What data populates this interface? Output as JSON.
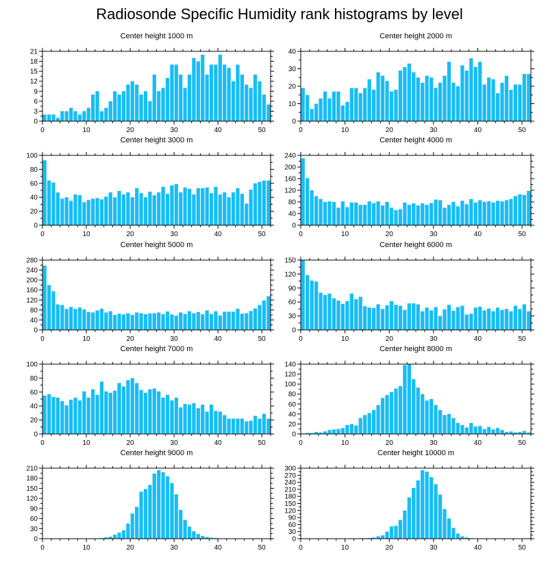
{
  "figure": {
    "title": "Radiosonde Specific Humidity rank histograms by level",
    "bar_color": "#18bdf5",
    "frame_color": "#000000"
  },
  "chart_data": [
    {
      "type": "bar",
      "title": "Center height 1000 m",
      "ylim": [
        0,
        21
      ],
      "yticks": [
        0,
        3,
        6,
        9,
        12,
        15,
        18,
        21
      ],
      "xlim": [
        0,
        52
      ],
      "xticks": [
        0,
        10,
        20,
        30,
        40,
        50
      ],
      "x": [
        0,
        1,
        2,
        3,
        4,
        5,
        6,
        7,
        8,
        9,
        10,
        11,
        12,
        13,
        14,
        15,
        16,
        17,
        18,
        19,
        20,
        21,
        22,
        23,
        24,
        25,
        26,
        27,
        28,
        29,
        30,
        31,
        32,
        33,
        34,
        35,
        36,
        37,
        38,
        39,
        40,
        41,
        42,
        43,
        44,
        45,
        46,
        47,
        48,
        49,
        50,
        51
      ],
      "values": [
        2,
        2,
        2,
        1,
        3,
        3,
        4,
        3,
        2,
        3,
        4,
        8,
        9,
        3,
        4,
        6,
        9,
        8,
        9,
        11,
        12,
        11,
        8,
        9,
        6,
        14,
        9,
        10,
        13,
        17,
        17,
        14,
        10,
        14,
        19,
        18,
        20,
        14,
        17,
        17,
        20,
        17,
        16,
        12,
        17,
        14,
        11,
        10,
        14,
        12,
        8,
        5
      ]
    },
    {
      "type": "bar",
      "title": "Center height 2000 m",
      "ylim": [
        0,
        40
      ],
      "yticks": [
        0,
        10,
        20,
        30,
        40
      ],
      "xlim": [
        0,
        52
      ],
      "xticks": [
        0,
        10,
        20,
        30,
        40,
        50
      ],
      "x": [
        0,
        1,
        2,
        3,
        4,
        5,
        6,
        7,
        8,
        9,
        10,
        11,
        12,
        13,
        14,
        15,
        16,
        17,
        18,
        19,
        20,
        21,
        22,
        23,
        24,
        25,
        26,
        27,
        28,
        29,
        30,
        31,
        32,
        33,
        34,
        35,
        36,
        37,
        38,
        39,
        40,
        41,
        42,
        43,
        44,
        45,
        46,
        47,
        48,
        49,
        50,
        51
      ],
      "values": [
        19,
        15,
        7,
        10,
        13,
        17,
        13,
        17,
        17,
        9,
        11,
        19,
        19,
        16,
        19,
        24,
        18,
        28,
        26,
        23,
        17,
        18,
        29,
        31,
        33,
        28,
        25,
        22,
        26,
        25,
        19,
        22,
        26,
        34,
        22,
        20,
        32,
        29,
        36,
        31,
        34,
        21,
        25,
        24,
        16,
        22,
        26,
        18,
        21,
        21,
        27,
        27
      ]
    },
    {
      "type": "bar",
      "title": "Center height 3000 m",
      "ylim": [
        0,
        100
      ],
      "yticks": [
        0,
        20,
        40,
        60,
        80,
        100
      ],
      "xlim": [
        0,
        52
      ],
      "xticks": [
        0,
        10,
        20,
        30,
        40,
        50
      ],
      "x": [
        0,
        1,
        2,
        3,
        4,
        5,
        6,
        7,
        8,
        9,
        10,
        11,
        12,
        13,
        14,
        15,
        16,
        17,
        18,
        19,
        20,
        21,
        22,
        23,
        24,
        25,
        26,
        27,
        28,
        29,
        30,
        31,
        32,
        33,
        34,
        35,
        36,
        37,
        38,
        39,
        40,
        41,
        42,
        43,
        44,
        45,
        46,
        47,
        48,
        49,
        50,
        51
      ],
      "values": [
        93,
        64,
        61,
        47,
        38,
        40,
        35,
        44,
        43,
        33,
        36,
        38,
        39,
        37,
        41,
        47,
        40,
        49,
        44,
        47,
        40,
        53,
        46,
        40,
        48,
        43,
        47,
        55,
        45,
        57,
        59,
        47,
        54,
        52,
        44,
        53,
        53,
        54,
        46,
        55,
        44,
        47,
        40,
        47,
        53,
        45,
        31,
        51,
        60,
        62,
        64,
        64
      ]
    },
    {
      "type": "bar",
      "title": "Center height 4000 m",
      "ylim": [
        0,
        240
      ],
      "yticks": [
        0,
        40,
        80,
        120,
        160,
        200,
        240
      ],
      "xlim": [
        0,
        52
      ],
      "xticks": [
        0,
        10,
        20,
        30,
        40,
        50
      ],
      "x": [
        0,
        1,
        2,
        3,
        4,
        5,
        6,
        7,
        8,
        9,
        10,
        11,
        12,
        13,
        14,
        15,
        16,
        17,
        18,
        19,
        20,
        21,
        22,
        23,
        24,
        25,
        26,
        27,
        28,
        29,
        30,
        31,
        32,
        33,
        34,
        35,
        36,
        37,
        38,
        39,
        40,
        41,
        42,
        43,
        44,
        45,
        46,
        47,
        48,
        49,
        50,
        51
      ],
      "values": [
        230,
        162,
        120,
        100,
        90,
        80,
        82,
        80,
        60,
        82,
        62,
        78,
        78,
        70,
        70,
        82,
        76,
        82,
        68,
        80,
        60,
        52,
        55,
        78,
        70,
        75,
        68,
        75,
        70,
        76,
        88,
        86,
        60,
        70,
        80,
        65,
        84,
        72,
        90,
        78,
        86,
        80,
        82,
        78,
        84,
        82,
        86,
        90,
        100,
        106,
        104,
        118
      ]
    },
    {
      "type": "bar",
      "title": "Center height 5000 m",
      "ylim": [
        0,
        280
      ],
      "yticks": [
        0,
        40,
        80,
        120,
        160,
        200,
        240,
        280
      ],
      "xlim": [
        0,
        52
      ],
      "xticks": [
        0,
        10,
        20,
        30,
        40,
        50
      ],
      "x": [
        0,
        1,
        2,
        3,
        4,
        5,
        6,
        7,
        8,
        9,
        10,
        11,
        12,
        13,
        14,
        15,
        16,
        17,
        18,
        19,
        20,
        21,
        22,
        23,
        24,
        25,
        26,
        27,
        28,
        29,
        30,
        31,
        32,
        33,
        34,
        35,
        36,
        37,
        38,
        39,
        40,
        41,
        42,
        43,
        44,
        45,
        46,
        47,
        48,
        49,
        50,
        51
      ],
      "values": [
        258,
        180,
        155,
        102,
        100,
        84,
        92,
        84,
        90,
        82,
        72,
        70,
        78,
        85,
        70,
        75,
        60,
        65,
        62,
        67,
        60,
        70,
        67,
        63,
        66,
        67,
        70,
        63,
        74,
        62,
        57,
        70,
        64,
        75,
        67,
        72,
        63,
        78,
        64,
        75,
        58,
        73,
        73,
        73,
        85,
        65,
        67,
        76,
        86,
        100,
        118,
        135
      ]
    },
    {
      "type": "bar",
      "title": "Center height 6000 m",
      "ylim": [
        0,
        150
      ],
      "yticks": [
        0,
        30,
        60,
        90,
        120,
        150
      ],
      "xlim": [
        0,
        52
      ],
      "xticks": [
        0,
        10,
        20,
        30,
        40,
        50
      ],
      "x": [
        0,
        1,
        2,
        3,
        4,
        5,
        6,
        7,
        8,
        9,
        10,
        11,
        12,
        13,
        14,
        15,
        16,
        17,
        18,
        19,
        20,
        21,
        22,
        23,
        24,
        25,
        26,
        27,
        28,
        29,
        30,
        31,
        32,
        33,
        34,
        35,
        36,
        37,
        38,
        39,
        40,
        41,
        42,
        43,
        44,
        45,
        46,
        47,
        48,
        49,
        50,
        51
      ],
      "values": [
        150,
        118,
        106,
        104,
        80,
        75,
        78,
        68,
        63,
        56,
        62,
        78,
        66,
        71,
        51,
        48,
        47,
        55,
        45,
        53,
        62,
        54,
        52,
        43,
        57,
        57,
        55,
        40,
        48,
        42,
        49,
        30,
        44,
        54,
        41,
        49,
        52,
        33,
        35,
        48,
        50,
        42,
        46,
        40,
        48,
        43,
        45,
        40,
        52,
        45,
        55,
        40
      ]
    },
    {
      "type": "bar",
      "title": "Center height 7000 m",
      "ylim": [
        0,
        100
      ],
      "yticks": [
        0,
        20,
        40,
        60,
        80,
        100
      ],
      "xlim": [
        0,
        52
      ],
      "xticks": [
        0,
        10,
        20,
        30,
        40,
        50
      ],
      "x": [
        0,
        1,
        2,
        3,
        4,
        5,
        6,
        7,
        8,
        9,
        10,
        11,
        12,
        13,
        14,
        15,
        16,
        17,
        18,
        19,
        20,
        21,
        22,
        23,
        24,
        25,
        26,
        27,
        28,
        29,
        30,
        31,
        32,
        33,
        34,
        35,
        36,
        37,
        38,
        39,
        40,
        41,
        42,
        43,
        44,
        45,
        46,
        47,
        48,
        49,
        50,
        51
      ],
      "values": [
        55,
        57,
        53,
        52,
        47,
        41,
        49,
        52,
        48,
        61,
        52,
        64,
        56,
        75,
        61,
        59,
        62,
        73,
        68,
        77,
        80,
        73,
        63,
        59,
        64,
        65,
        61,
        52,
        56,
        48,
        52,
        38,
        43,
        42,
        44,
        37,
        42,
        32,
        42,
        33,
        32,
        27,
        22,
        22,
        22,
        22,
        18,
        19,
        26,
        22,
        29,
        22
      ]
    },
    {
      "type": "bar",
      "title": "Center height 8000 m",
      "ylim": [
        0,
        140
      ],
      "yticks": [
        0,
        20,
        40,
        60,
        80,
        100,
        120,
        140
      ],
      "xlim": [
        0,
        52
      ],
      "xticks": [
        0,
        10,
        20,
        30,
        40,
        50
      ],
      "x": [
        0,
        1,
        2,
        3,
        4,
        5,
        6,
        7,
        8,
        9,
        10,
        11,
        12,
        13,
        14,
        15,
        16,
        17,
        18,
        19,
        20,
        21,
        22,
        23,
        24,
        25,
        26,
        27,
        28,
        29,
        30,
        31,
        32,
        33,
        34,
        35,
        36,
        37,
        38,
        39,
        40,
        41,
        42,
        43,
        44,
        45,
        46,
        47,
        48,
        49,
        50,
        51
      ],
      "values": [
        1,
        2,
        2,
        4,
        3,
        5,
        8,
        9,
        10,
        12,
        18,
        20,
        17,
        32,
        38,
        42,
        48,
        58,
        72,
        78,
        84,
        91,
        96,
        138,
        140,
        110,
        93,
        80,
        67,
        70,
        58,
        48,
        38,
        40,
        32,
        22,
        18,
        13,
        22,
        15,
        16,
        10,
        14,
        9,
        12,
        8,
        4,
        5,
        3,
        4,
        6,
        3
      ]
    },
    {
      "type": "bar",
      "title": "Center height 9000 m",
      "ylim": [
        0,
        210
      ],
      "yticks": [
        0,
        30,
        60,
        90,
        120,
        150,
        180,
        210
      ],
      "xlim": [
        0,
        52
      ],
      "xticks": [
        0,
        10,
        20,
        30,
        40,
        50
      ],
      "x": [
        0,
        1,
        2,
        3,
        4,
        5,
        6,
        7,
        8,
        9,
        10,
        11,
        12,
        13,
        14,
        15,
        16,
        17,
        18,
        19,
        20,
        21,
        22,
        23,
        24,
        25,
        26,
        27,
        28,
        29,
        30,
        31,
        32,
        33,
        34,
        35,
        36,
        37,
        38,
        39,
        40,
        41,
        42,
        43,
        44,
        45,
        46,
        47,
        48,
        49,
        50,
        51
      ],
      "values": [
        0,
        0,
        0,
        0,
        0,
        0,
        0,
        0,
        0,
        0,
        1,
        1,
        1,
        2,
        4,
        6,
        12,
        18,
        25,
        45,
        75,
        95,
        140,
        148,
        160,
        194,
        204,
        198,
        186,
        166,
        132,
        86,
        56,
        36,
        22,
        14,
        8,
        5,
        3,
        2,
        1,
        1,
        0,
        0,
        0,
        0,
        0,
        0,
        0,
        0,
        0,
        0
      ]
    },
    {
      "type": "bar",
      "title": "Center height 10000 m",
      "ylim": [
        0,
        300
      ],
      "yticks": [
        0,
        30,
        60,
        90,
        120,
        150,
        180,
        210,
        240,
        270,
        300
      ],
      "xlim": [
        0,
        52
      ],
      "xticks": [
        0,
        10,
        20,
        30,
        40,
        50
      ],
      "x": [
        0,
        1,
        2,
        3,
        4,
        5,
        6,
        7,
        8,
        9,
        10,
        11,
        12,
        13,
        14,
        15,
        16,
        17,
        18,
        19,
        20,
        21,
        22,
        23,
        24,
        25,
        26,
        27,
        28,
        29,
        30,
        31,
        32,
        33,
        34,
        35,
        36,
        37,
        38,
        39,
        40,
        41,
        42,
        43,
        44,
        45,
        46,
        47,
        48,
        49,
        50,
        51
      ],
      "values": [
        0,
        0,
        0,
        0,
        0,
        0,
        0,
        0,
        0,
        0,
        0,
        0,
        1,
        2,
        2,
        3,
        5,
        10,
        14,
        30,
        52,
        55,
        80,
        120,
        176,
        216,
        248,
        292,
        285,
        262,
        232,
        188,
        126,
        86,
        46,
        22,
        10,
        5,
        2,
        1,
        0,
        0,
        0,
        0,
        0,
        0,
        0,
        0,
        0,
        0,
        0,
        0
      ]
    }
  ]
}
